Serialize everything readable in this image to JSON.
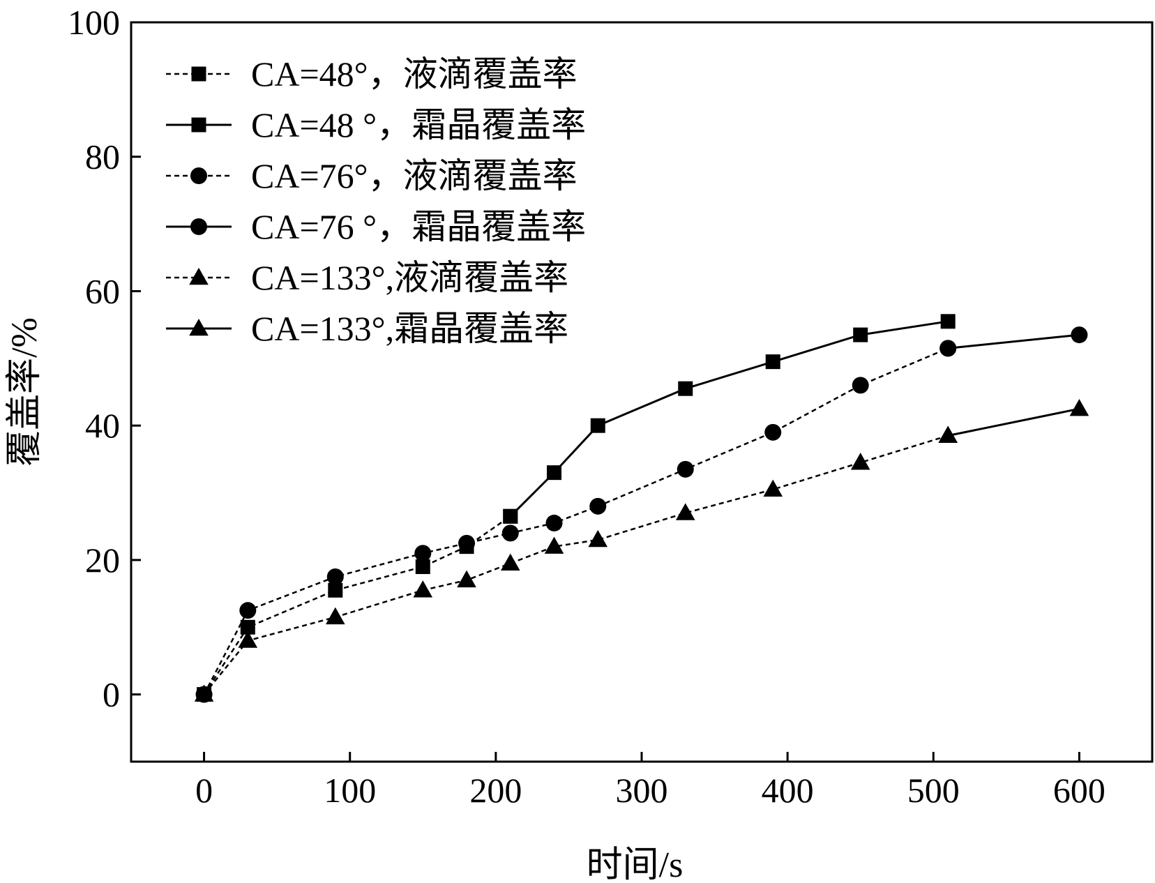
{
  "chart_data": {
    "type": "line",
    "title": "",
    "xlabel": "时间/s",
    "ylabel": "覆盖率/%",
    "xlim": [
      -50,
      650
    ],
    "ylim": [
      -10,
      100
    ],
    "xticks": [
      0,
      100,
      200,
      300,
      400,
      500,
      600
    ],
    "yticks": [
      0,
      20,
      40,
      60,
      80,
      100
    ],
    "grid": false,
    "legend_position": "top-left",
    "series": [
      {
        "name": "CA=48°，液滴覆盖率",
        "line": "dashed",
        "marker": "square",
        "x": [
          0,
          30,
          90,
          150,
          180,
          210
        ],
        "y": [
          0,
          10,
          15.5,
          19,
          22,
          26.5
        ]
      },
      {
        "name": "CA=48 °，霜晶覆盖率",
        "line": "solid",
        "marker": "square",
        "x": [
          210,
          240,
          270,
          330,
          390,
          450,
          510
        ],
        "y": [
          26.5,
          33,
          40,
          45.5,
          49.5,
          53.5,
          55.5
        ]
      },
      {
        "name": "CA=76°，液滴覆盖率",
        "line": "dashed",
        "marker": "circle",
        "x": [
          0,
          30,
          90,
          150,
          180,
          210,
          240,
          270,
          330,
          390,
          450,
          510
        ],
        "y": [
          0,
          12.5,
          17.5,
          21,
          22.5,
          24,
          25.5,
          28,
          33.5,
          39,
          46,
          51.5
        ]
      },
      {
        "name": "CA=76 °，霜晶覆盖率",
        "line": "solid",
        "marker": "circle",
        "x": [
          510,
          600
        ],
        "y": [
          51.5,
          53.5
        ]
      },
      {
        "name": "CA=133°,液滴覆盖率",
        "line": "dashed",
        "marker": "triangle",
        "x": [
          0,
          30,
          90,
          150,
          180,
          210,
          240,
          270,
          330,
          390,
          450,
          510
        ],
        "y": [
          0,
          8,
          11.5,
          15.5,
          17,
          19.5,
          22,
          23,
          27,
          30.5,
          34.5,
          38.5
        ]
      },
      {
        "name": "CA=133°,霜晶覆盖率",
        "line": "solid",
        "marker": "triangle",
        "x": [
          510,
          600
        ],
        "y": [
          38.5,
          42.5
        ]
      }
    ]
  }
}
